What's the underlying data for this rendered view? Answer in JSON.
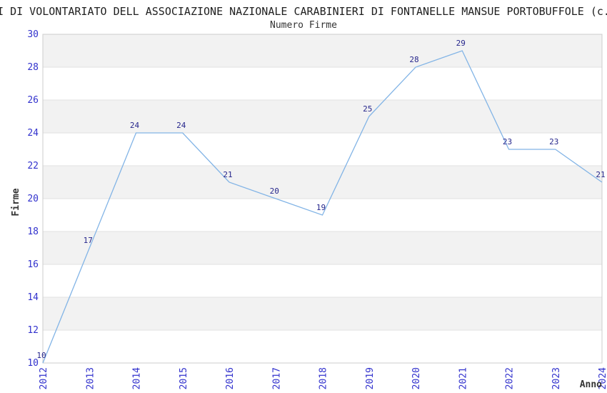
{
  "header": {
    "title": "I DI VOLONTARIATO DELL ASSOCIAZIONE NAZIONALE CARABINIERI DI FONTANELLE MANSUE PORTOBUFFOLE (c.",
    "subtitle": "Numero Firme"
  },
  "chart_data": {
    "type": "line",
    "title": "I DI VOLONTARIATO DELL ASSOCIAZIONE NAZIONALE CARABINIERI DI FONTANELLE MANSUE PORTOBUFFOLE (c.",
    "subtitle": "Numero Firme",
    "xlabel": "Anno",
    "ylabel": "Firme",
    "categories": [
      "2012",
      "2013",
      "2014",
      "2015",
      "2016",
      "2017",
      "2018",
      "2019",
      "2020",
      "2021",
      "2022",
      "2023",
      "2024"
    ],
    "values": [
      10,
      17,
      24,
      24,
      21,
      20,
      19,
      25,
      28,
      29,
      23,
      23,
      21
    ],
    "ylim": [
      10,
      30
    ],
    "ytick_step": 2,
    "grid": true,
    "legend": "none",
    "markers": false,
    "colors": {
      "line": "#82b4e6",
      "data_label": "#26268c",
      "tick_label": "#3232cd",
      "band": "#f2f2f2",
      "gridline": "#e2e2e2",
      "plot_border": "#cccccc",
      "axis_title": "#333333"
    }
  }
}
